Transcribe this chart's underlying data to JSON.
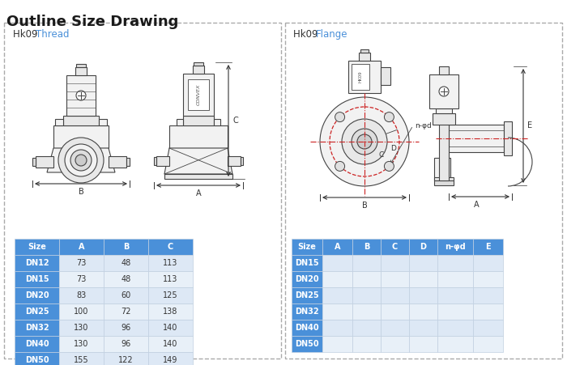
{
  "title": "Outline Size Drawing",
  "title_color": "#1a1a1a",
  "title_fontsize": 13,
  "bg_color": "#ffffff",
  "left_panel_title_black": "Hk09 ",
  "left_panel_title_blue": "Thread",
  "right_panel_title_black": "Hk09 ",
  "right_panel_title_blue": "Flange",
  "panel_title_color": "#333333",
  "panel_title_highlight": "#4a90d9",
  "dashed_border_color": "#aaaaaa",
  "left_table": {
    "header": [
      "Size",
      "A",
      "B",
      "C"
    ],
    "rows": [
      [
        "DN12",
        "73",
        "48",
        "113"
      ],
      [
        "DN15",
        "73",
        "48",
        "113"
      ],
      [
        "DN20",
        "83",
        "60",
        "125"
      ],
      [
        "DN25",
        "100",
        "72",
        "138"
      ],
      [
        "DN32",
        "130",
        "96",
        "140"
      ],
      [
        "DN40",
        "130",
        "96",
        "140"
      ],
      [
        "DN50",
        "155",
        "122",
        "149"
      ]
    ],
    "header_bg": "#4a90d9",
    "row_size_bg": "#4a90d9",
    "row_alt_bg": "#dde8f5",
    "row_white_bg": "#e8f0f8",
    "text_white": "#ffffff",
    "text_dark": "#333333"
  },
  "right_table": {
    "header": [
      "Size",
      "A",
      "B",
      "C",
      "D",
      "n-φd",
      "E"
    ],
    "rows": [
      [
        "DN15",
        "",
        "",
        "",
        "",
        "",
        ""
      ],
      [
        "DN20",
        "",
        "",
        "",
        "",
        "",
        ""
      ],
      [
        "DN25",
        "",
        "",
        "",
        "",
        "",
        ""
      ],
      [
        "DN32",
        "",
        "",
        "",
        "",
        "",
        ""
      ],
      [
        "DN40",
        "",
        "",
        "",
        "",
        "",
        ""
      ],
      [
        "DN50",
        "",
        "",
        "",
        "",
        "",
        ""
      ]
    ],
    "header_bg": "#4a90d9",
    "row_size_bg": "#4a90d9",
    "row_alt_bg": "#dde8f5",
    "row_white_bg": "#e8f0f8",
    "text_white": "#ffffff",
    "text_dark": "#333333"
  }
}
